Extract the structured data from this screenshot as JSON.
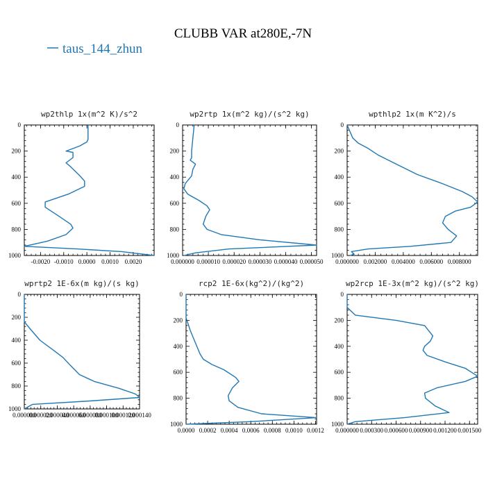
{
  "figure": {
    "title": "CLUBB VAR at280E,-7N",
    "legend": {
      "label": "taus_144_zhun",
      "color": "#1f77b4"
    }
  },
  "chart_data": [
    {
      "type": "line",
      "title": "wp2thlp   1x(m^2 K)/s^2",
      "xlim": [
        -0.0027,
        0.0029
      ],
      "ylim": [
        0,
        1000
      ],
      "y_inverted": true,
      "xticks": [
        -0.002,
        -0.001,
        0.0,
        0.001,
        0.002
      ],
      "xtick_labels": [
        "-0.0020",
        "-0.0010",
        "0.0000",
        "0.0010",
        "0.0020"
      ],
      "yticks": [
        0,
        200,
        400,
        600,
        800,
        1000
      ],
      "ytick_labels": [
        "0",
        "200",
        "400",
        "600",
        "800",
        "1000"
      ],
      "series": [
        {
          "name": "taus_144_zhun",
          "x": [
            5e-05,
            5e-05,
            5e-05,
            0.0,
            -0.0003,
            -0.0009,
            -0.0006,
            -0.0006,
            -0.0009,
            -0.0007,
            -0.0003,
            -0.0001,
            -0.0001,
            -0.0008,
            -0.0018,
            -0.0018,
            -0.0012,
            -0.0007,
            -0.0006,
            -0.0009,
            -0.0017,
            -0.0027,
            -0.0004,
            0.0015,
            0.0029
          ],
          "y": [
            0,
            50,
            110,
            130,
            160,
            200,
            210,
            250,
            290,
            320,
            390,
            430,
            470,
            530,
            590,
            630,
            700,
            760,
            790,
            840,
            890,
            930,
            950,
            970,
            1000
          ]
        }
      ]
    },
    {
      "type": "line",
      "title": "wp2rtp   1x(m^2 kg)/(s^2 kg)",
      "xlim": [
        0.0,
        5.2e-05
      ],
      "ylim": [
        0,
        1000
      ],
      "y_inverted": true,
      "xticks": [
        0.0,
        1e-05,
        2e-05,
        3e-05,
        4e-05,
        5e-05
      ],
      "xtick_labels": [
        "0.000000",
        "0.000010",
        "0.000020",
        "0.000030",
        "0.000040",
        "0.000050"
      ],
      "yticks": [
        0,
        200,
        400,
        600,
        800,
        1000
      ],
      "ytick_labels": [
        "0",
        "200",
        "400",
        "600",
        "800",
        "1000"
      ],
      "series": [
        {
          "name": "taus_144_zhun",
          "x": [
            4.5e-06,
            4e-06,
            3.5e-06,
            3.5e-06,
            3e-06,
            5e-06,
            4e-06,
            3.5e-06,
            1e-06,
            5e-07,
            2e-06,
            6.5e-06,
            9.5e-06,
            1.05e-05,
            9e-06,
            8e-06,
            9.5e-06,
            1.5e-05,
            3e-05,
            5.2e-05,
            1.8e-05,
            5e-06,
            5e-07
          ],
          "y": [
            0,
            100,
            200,
            250,
            270,
            300,
            340,
            390,
            450,
            490,
            530,
            580,
            620,
            650,
            700,
            760,
            800,
            840,
            880,
            920,
            950,
            980,
            1000
          ]
        }
      ]
    },
    {
      "type": "line",
      "title": "wpthlp2   1x(m K^2)/s",
      "xlim": [
        0.0,
        0.0093
      ],
      "ylim": [
        0,
        1000
      ],
      "y_inverted": true,
      "xticks": [
        0.0,
        0.002,
        0.004,
        0.006,
        0.008
      ],
      "xtick_labels": [
        "0.000000",
        "0.002000",
        "0.004000",
        "0.006000",
        "0.008000"
      ],
      "yticks": [
        0,
        200,
        400,
        600,
        800,
        1000
      ],
      "ytick_labels": [
        "0",
        "200",
        "400",
        "600",
        "800",
        "1000"
      ],
      "series": [
        {
          "name": "taus_144_zhun",
          "x": [
            0.0,
            0.0002,
            0.0004,
            0.0008,
            0.0015,
            0.0022,
            0.0035,
            0.005,
            0.0068,
            0.0082,
            0.0089,
            0.0093,
            0.0088,
            0.0077,
            0.007,
            0.0068,
            0.0072,
            0.0078,
            0.0074,
            0.0045,
            0.0015,
            0.0003,
            0.0005,
            0.0002
          ],
          "y": [
            0,
            50,
            100,
            140,
            180,
            230,
            300,
            380,
            450,
            510,
            550,
            590,
            630,
            660,
            700,
            750,
            800,
            850,
            900,
            930,
            950,
            970,
            990,
            1000
          ]
        }
      ]
    },
    {
      "type": "line",
      "title": "wprtp2   1E-6x(m kg)/(s kg)",
      "xlim": [
        0.0,
        0.00014
      ],
      "ylim": [
        0,
        1000
      ],
      "y_inverted": true,
      "xticks": [
        0.0,
        2e-05,
        4e-05,
        6e-05,
        8e-05,
        0.0001,
        0.00012,
        0.00014
      ],
      "xtick_labels": [
        "0.000000",
        "0.000020",
        "0.000040",
        "0.000060",
        "0.000080",
        "0.000100",
        "0.000120",
        "0.000140"
      ],
      "yticks": [
        0,
        200,
        400,
        600,
        800,
        1000
      ],
      "ytick_labels": [
        "0",
        "200",
        "400",
        "600",
        "800",
        "1000"
      ],
      "series": [
        {
          "name": "taus_144_zhun",
          "x": [
            0.0,
            0.0,
            0.0,
            7e-06,
            1.9e-05,
            3.4e-05,
            4.7e-05,
            5.6e-05,
            6.7e-05,
            8.5e-05,
            0.000115,
            0.000135,
            0.00014,
            8e-05,
            1e-05,
            0.0
          ],
          "y": [
            0,
            100,
            240,
            300,
            400,
            480,
            550,
            620,
            700,
            760,
            820,
            870,
            900,
            930,
            960,
            1000
          ]
        }
      ]
    },
    {
      "type": "line",
      "title": "rcp2   1E-6x(kg^2)/(kg^2)",
      "xlim": [
        0.0,
        0.00121
      ],
      "ylim": [
        0,
        1000
      ],
      "y_inverted": true,
      "xticks": [
        0.0,
        0.0002,
        0.0004,
        0.0006,
        0.0008,
        0.001,
        0.0012
      ],
      "xtick_labels": [
        "0.0000",
        "0.0002",
        "0.0004",
        "0.0006",
        "0.0008",
        "0.0010",
        "0.0012"
      ],
      "yticks": [
        0,
        200,
        400,
        600,
        800,
        1000
      ],
      "ytick_labels": [
        "0",
        "200",
        "400",
        "600",
        "800",
        "1000"
      ],
      "series": [
        {
          "name": "taus_144_zhun",
          "x": [
            0.0,
            0.0,
            0.0,
            4e-05,
            9e-05,
            0.00013,
            0.00016,
            0.00024,
            0.00035,
            0.00046,
            0.00049,
            0.00043,
            0.00039,
            0.0004,
            0.00048,
            0.0007,
            0.00121,
            0.0006,
            0.0
          ],
          "y": [
            0,
            100,
            180,
            280,
            380,
            460,
            500,
            540,
            580,
            640,
            670,
            720,
            780,
            820,
            870,
            920,
            950,
            980,
            1000
          ]
        }
      ]
    },
    {
      "type": "line",
      "title": "wp2rcp   1E-3x(m^2 kg)/(s^2 kg)",
      "xlim": [
        0.0,
        0.0016
      ],
      "ylim": [
        0,
        1000
      ],
      "y_inverted": true,
      "xticks": [
        0.0,
        0.0003,
        0.0006,
        0.0009,
        0.0012,
        0.0015
      ],
      "xtick_labels": [
        "0.000000",
        "0.000300",
        "0.000600",
        "0.000900",
        "0.001200",
        "0.001500"
      ],
      "yticks": [
        0,
        200,
        400,
        600,
        800,
        1000
      ],
      "ytick_labels": [
        "0",
        "200",
        "400",
        "600",
        "800",
        "1000"
      ],
      "series": [
        {
          "name": "taus_144_zhun",
          "x": [
            0.0,
            0.0,
            0.0001,
            0.0006,
            0.00095,
            0.00105,
            0.00102,
            0.00095,
            0.00093,
            0.00098,
            0.0012,
            0.00145,
            0.0016,
            0.00145,
            0.0011,
            0.00095,
            0.00096,
            0.00108,
            0.00125,
            0.0007,
            0.0001,
            0.0
          ],
          "y": [
            0,
            100,
            160,
            200,
            240,
            320,
            360,
            400,
            430,
            470,
            520,
            570,
            630,
            670,
            720,
            760,
            800,
            860,
            910,
            950,
            980,
            1000
          ]
        }
      ]
    }
  ]
}
